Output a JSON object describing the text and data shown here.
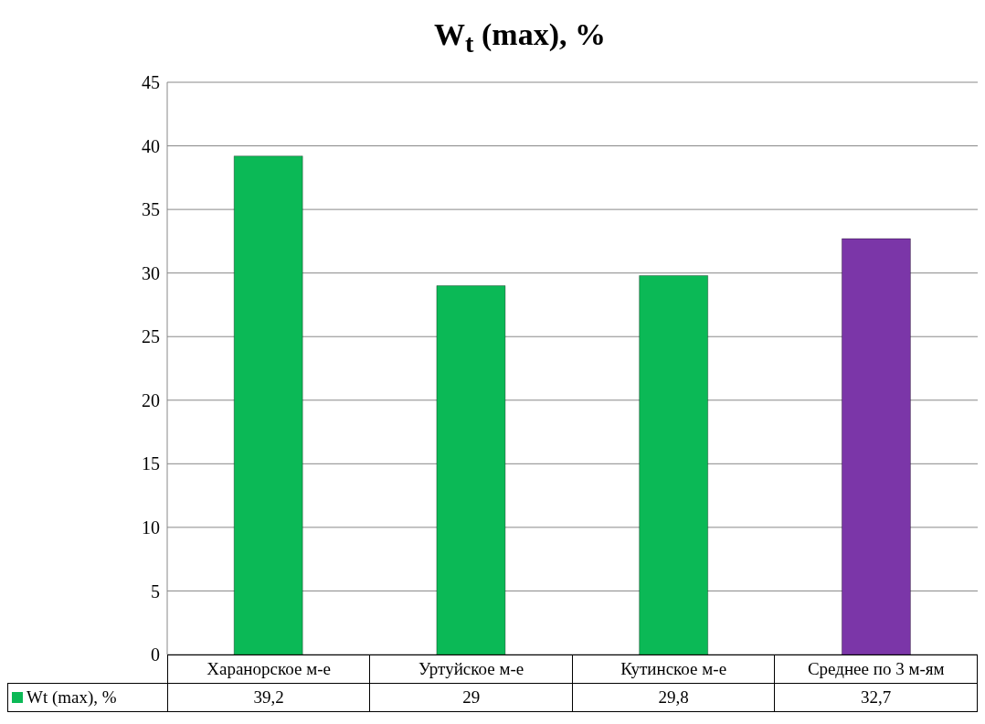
{
  "chart_data": {
    "type": "bar",
    "title": "W$_{t}$ (max), %",
    "categories": [
      "Харанорское м-е",
      "Уртуйское м-е",
      "Кутинское м-е",
      "Среднее по 3 м-ям"
    ],
    "series": [
      {
        "name": "Wt (max), %",
        "color": "#0bb956",
        "colors": [
          "#0bb956",
          "#0bb956",
          "#0bb956",
          "#7b36a8"
        ],
        "values": [
          39.2,
          29,
          29.8,
          32.7
        ],
        "value_labels": [
          "39,2",
          "29",
          "29,8",
          "32,7"
        ]
      }
    ],
    "ylim": [
      0,
      45
    ],
    "yticks": [
      0,
      5,
      10,
      15,
      20,
      25,
      30,
      35,
      40,
      45
    ],
    "grid": "y"
  }
}
